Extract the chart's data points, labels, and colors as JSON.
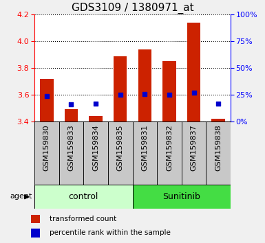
{
  "title": "GDS3109 / 1380971_at",
  "samples": [
    "GSM159830",
    "GSM159833",
    "GSM159834",
    "GSM159835",
    "GSM159831",
    "GSM159832",
    "GSM159837",
    "GSM159838"
  ],
  "transformed_count": [
    3.72,
    3.49,
    3.44,
    3.89,
    3.94,
    3.85,
    4.14,
    3.42
  ],
  "percentile_rank": [
    24,
    16,
    17,
    25,
    26,
    25,
    27,
    17
  ],
  "bar_bottom": 3.4,
  "ylim": [
    3.4,
    4.2
  ],
  "y2lim": [
    0,
    100
  ],
  "yticks": [
    3.4,
    3.6,
    3.8,
    4.0,
    4.2
  ],
  "y2ticks": [
    0,
    25,
    50,
    75,
    100
  ],
  "bar_color": "#cc2200",
  "dot_color": "#0000cc",
  "ctrl_color": "#ccffcc",
  "sun_color": "#44dd44",
  "legend_bar_label": "transformed count",
  "legend_dot_label": "percentile rank within the sample",
  "fig_bg": "#f0f0f0",
  "plot_bg": "#ffffff",
  "xtick_bg": "#c8c8c8",
  "title_fontsize": 11,
  "tick_fontsize": 8,
  "label_fontsize": 8
}
